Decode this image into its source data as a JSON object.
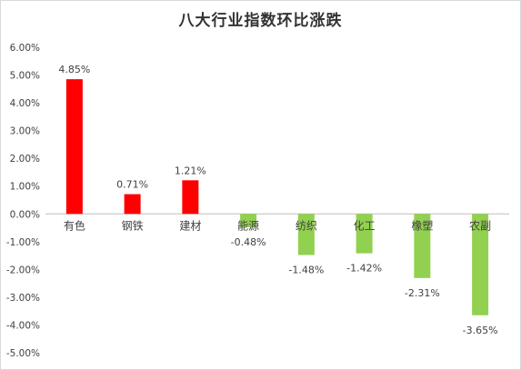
{
  "chart_data": {
    "type": "bar",
    "title": "八大行业指数环比涨跌",
    "xlabel": "",
    "ylabel": "",
    "categories": [
      "有色",
      "钢铁",
      "建材",
      "能源",
      "纺织",
      "化工",
      "橡塑",
      "农副"
    ],
    "values": [
      4.85,
      0.71,
      1.21,
      -0.48,
      -1.48,
      -1.42,
      -2.31,
      -3.65
    ],
    "data_labels": [
      "4.85%",
      "0.71%",
      "1.21%",
      "-0.48%",
      "-1.48%",
      "-1.42%",
      "-2.31%",
      "-3.65%"
    ],
    "y_ticks": [
      6,
      5,
      4,
      3,
      2,
      1,
      0,
      -1,
      -2,
      -3,
      -4,
      -5
    ],
    "y_tick_labels": [
      "6.00%",
      "5.00%",
      "4.00%",
      "3.00%",
      "2.00%",
      "1.00%",
      "0.00%",
      "-1.00%",
      "-2.00%",
      "-3.00%",
      "-4.00%",
      "-5.00%"
    ],
    "ylim": [
      -5,
      6
    ],
    "grid": false,
    "legend": "none",
    "colors": {
      "positive": "#ff0000",
      "negative": "#92d050",
      "axis": "#bfbfbf"
    }
  }
}
